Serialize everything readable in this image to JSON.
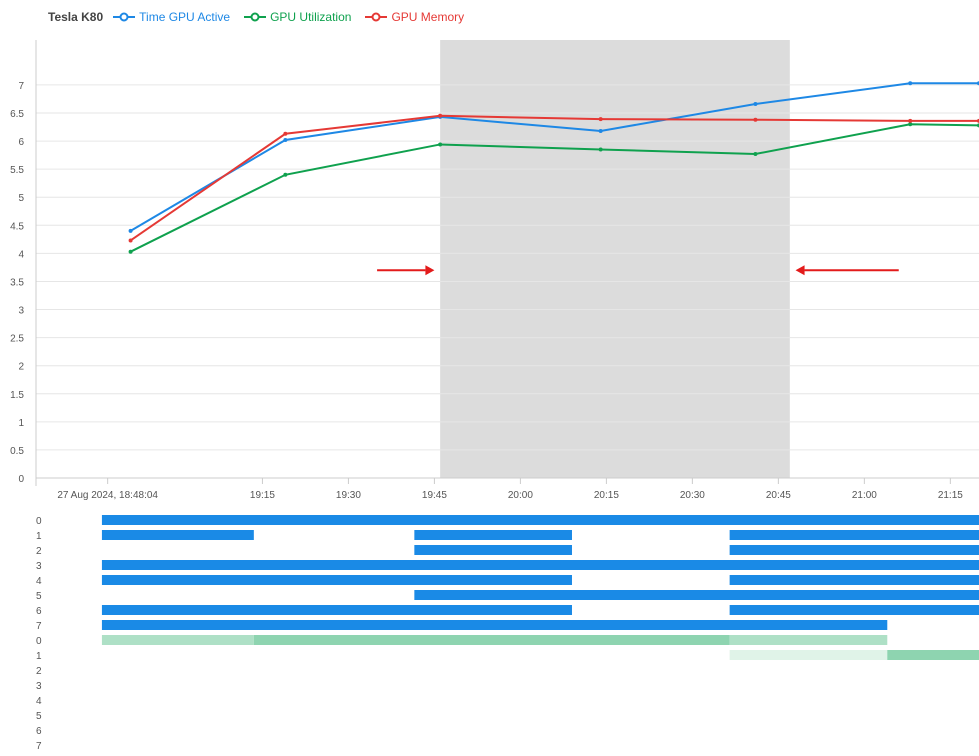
{
  "chart_data": [
    {
      "type": "line",
      "title": "Tesla K80",
      "x_tick_labels": [
        "27 Aug 2024, 18:48:04",
        "19:15",
        "19:30",
        "19:45",
        "20:00",
        "20:15",
        "20:30",
        "20:45",
        "21:00",
        "21:15"
      ],
      "x_ticks_minutes": [
        0,
        27,
        42,
        57,
        72,
        87,
        102,
        117,
        132,
        147
      ],
      "xlim_minutes": [
        -12.5,
        152
      ],
      "ylim": [
        0,
        7.8
      ],
      "y_ticks": [
        "0",
        "0.5",
        "1",
        "1.5",
        "2",
        "2.5",
        "3",
        "3.5",
        "4",
        "4.5",
        "5",
        "5.5",
        "6",
        "6.5",
        "7"
      ],
      "y_tick_values": [
        0,
        0.5,
        1,
        1.5,
        2,
        2.5,
        3,
        3.5,
        4,
        4.5,
        5,
        5.5,
        6,
        6.5,
        7
      ],
      "grid": true,
      "legend": "top-left",
      "series": [
        {
          "name": "Time GPU Active",
          "color": "#1e88e5",
          "x": [
            4,
            31,
            58,
            86,
            113,
            140,
            152
          ],
          "y": [
            4.4,
            6.02,
            6.43,
            6.18,
            6.66,
            7.03,
            7.03
          ]
        },
        {
          "name": "GPU Utilization",
          "color": "#0fa14e",
          "x": [
            4,
            31,
            58,
            86,
            113,
            140,
            152
          ],
          "y": [
            4.03,
            5.4,
            5.94,
            5.85,
            5.77,
            6.3,
            6.28
          ]
        },
        {
          "name": "GPU Memory",
          "color": "#e53935",
          "x": [
            4,
            31,
            58,
            86,
            113,
            140,
            152
          ],
          "y": [
            4.23,
            6.13,
            6.45,
            6.39,
            6.38,
            6.36,
            6.36
          ]
        }
      ],
      "highlight_range_minutes": [
        58,
        119
      ],
      "arrows": [
        {
          "direction": "right",
          "y": 3.7,
          "from_x": 47,
          "to_x": 57,
          "color": "#e31b1b"
        },
        {
          "direction": "left",
          "y": 3.7,
          "from_x": 138,
          "to_x": 120,
          "color": "#e31b1b"
        }
      ]
    },
    {
      "type": "timeline",
      "xlim_minutes": [
        -12.5,
        152
      ],
      "row_labels": [
        "0",
        "1",
        "2",
        "3",
        "4",
        "5",
        "6",
        "7",
        "0",
        "1",
        "2",
        "3",
        "4",
        "5",
        "6",
        "7"
      ],
      "segments": [
        {
          "row": 0,
          "start": -1,
          "end": 152,
          "color": "#1a8ae6"
        },
        {
          "row": 1,
          "start": -1,
          "end": 25.5,
          "color": "#1a8ae6"
        },
        {
          "row": 1,
          "start": 53.5,
          "end": 81,
          "color": "#1a8ae6"
        },
        {
          "row": 1,
          "start": 108.5,
          "end": 152,
          "color": "#1a8ae6"
        },
        {
          "row": 2,
          "start": 53.5,
          "end": 81,
          "color": "#1a8ae6"
        },
        {
          "row": 2,
          "start": 108.5,
          "end": 152,
          "color": "#1a8ae6"
        },
        {
          "row": 3,
          "start": -1,
          "end": 152,
          "color": "#1a8ae6"
        },
        {
          "row": 4,
          "start": -1,
          "end": 81,
          "color": "#1a8ae6"
        },
        {
          "row": 4,
          "start": 108.5,
          "end": 152,
          "color": "#1a8ae6"
        },
        {
          "row": 5,
          "start": 53.5,
          "end": 152,
          "color": "#1a8ae6"
        },
        {
          "row": 6,
          "start": -1,
          "end": 81,
          "color": "#1a8ae6"
        },
        {
          "row": 6,
          "start": 108.5,
          "end": 152,
          "color": "#1a8ae6"
        },
        {
          "row": 7,
          "start": -1,
          "end": 136,
          "color": "#1a8ae6"
        },
        {
          "row": 8,
          "start": -1,
          "end": 25.5,
          "color": "#aee0c6"
        },
        {
          "row": 8,
          "start": 25.5,
          "end": 108.5,
          "color": "#8ed4b0"
        },
        {
          "row": 8,
          "start": 108.5,
          "end": 136,
          "color": "#aee0c6"
        },
        {
          "row": 9,
          "start": 108.5,
          "end": 136,
          "color": "#e0f3e8"
        },
        {
          "row": 9,
          "start": 136,
          "end": 152,
          "color": "#8ed4b0"
        }
      ]
    }
  ]
}
